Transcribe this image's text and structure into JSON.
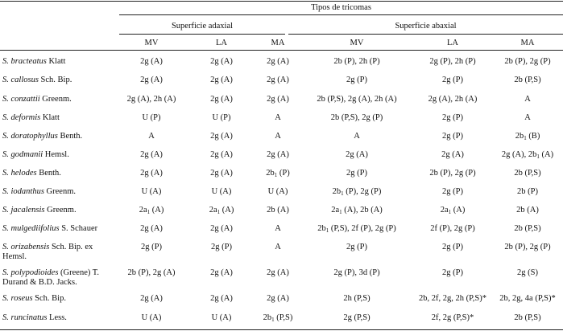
{
  "table": {
    "title": "Tipos de tricomas",
    "group_adaxial": "Superficie adaxial",
    "group_abaxial": "Superficie abaxial",
    "columns": [
      "MV",
      "LA",
      "MA",
      "MV",
      "LA",
      "MA"
    ],
    "rows": [
      {
        "species": "S. bracteatus",
        "author": "Klatt",
        "cells": [
          "2g (A)",
          "2g (A)",
          "2g (A)",
          "2b (P), 2h (P)",
          "2g (P), 2h (P)",
          "2b (P), 2g (P)"
        ]
      },
      {
        "species": "S. callosus",
        "author": "Sch. Bip.",
        "cells": [
          "2g (A)",
          "2g (A)",
          "2g (A)",
          "2g (P)",
          "2g (P)",
          "2b (P,S)"
        ]
      },
      {
        "species": "S. conzattii",
        "author": "Greenm.",
        "cells": [
          "2g (A), 2h (A)",
          "2g (A)",
          "2g (A)",
          "2b (P,S), 2g (A), 2h (A)",
          "2g (A), 2h (A)",
          "A"
        ]
      },
      {
        "species": "S. deformis",
        "author": "Klatt",
        "cells": [
          "U (P)",
          "U (P)",
          "A",
          "2b (P,S), 2g (P)",
          "2g (P)",
          "A"
        ]
      },
      {
        "species": "S. doratophyllus",
        "author": "Benth.",
        "cells": [
          "A",
          "2g (A)",
          "A",
          "A",
          "2g (P)",
          "2b|1| (B)"
        ]
      },
      {
        "species": "S. godmanii",
        "author": "Hemsl.",
        "cells": [
          "2g (A)",
          "2g (A)",
          "2g (A)",
          "2g (A)",
          "2g (A)",
          "2g (A), 2b|1| (A)"
        ]
      },
      {
        "species": "S. helodes",
        "author": "Benth.",
        "cells": [
          "2g (A)",
          "2g (A)",
          "2b|1| (P)",
          "2g (P)",
          "2b (P), 2g (P)",
          "2b (P,S)"
        ]
      },
      {
        "species": "S. iodanthus",
        "author": "Greenm.",
        "cells": [
          "U (A)",
          "U (A)",
          "U (A)",
          "2b|1| (P), 2g (P)",
          "2g (P)",
          "2b (P)"
        ]
      },
      {
        "species": "S. jacalensis",
        "author": "Greenm.",
        "cells": [
          "2a|1| (A)",
          "2a|1| (A)",
          "2b (A)",
          "2a|1| (A), 2b (A)",
          "2a|1| (A)",
          "2b (A)"
        ]
      },
      {
        "species": "S. mulgediifolius",
        "author": "S. Schauer",
        "cells": [
          "2g (A)",
          "2g (A)",
          "A",
          "2b|1| (P,S), 2f (P), 2g (P)",
          "2f (P), 2g (P)",
          "2b (P,S)"
        ]
      },
      {
        "species": "S. orizabensis",
        "author": "Sch. Bip. ex",
        "author2": "Hemsl.",
        "cells": [
          "2g (P)",
          "2g (P)",
          "A",
          "2g (P)",
          "2g (P)",
          "2b (P), 2g (P)"
        ]
      },
      {
        "species": "S. polypodioides",
        "author": "(Greene) T.",
        "author2": "Durand & B.D. Jacks.",
        "cells": [
          "2b (P), 2g (A)",
          "2g (A)",
          "2g (A)",
          "2g (P), 3d (P)",
          "2g (P)",
          "2g (S)"
        ]
      },
      {
        "species": "S. roseus",
        "author": "Sch. Bip.",
        "cells": [
          "2g (A)",
          "2g (A)",
          "2g (A)",
          "2h (P,S)",
          "2b, 2f, 2g, 2h (P,S)*",
          "2b, 2g, 4a (P,S)*"
        ]
      },
      {
        "species": "S. runcinatus",
        "author": "Less.",
        "cells": [
          "U (A)",
          "U (A)",
          "2b|1| (P,S)",
          "2g (P,S)",
          "2f, 2g (P,S)*",
          "2b (P,S)"
        ]
      }
    ]
  }
}
